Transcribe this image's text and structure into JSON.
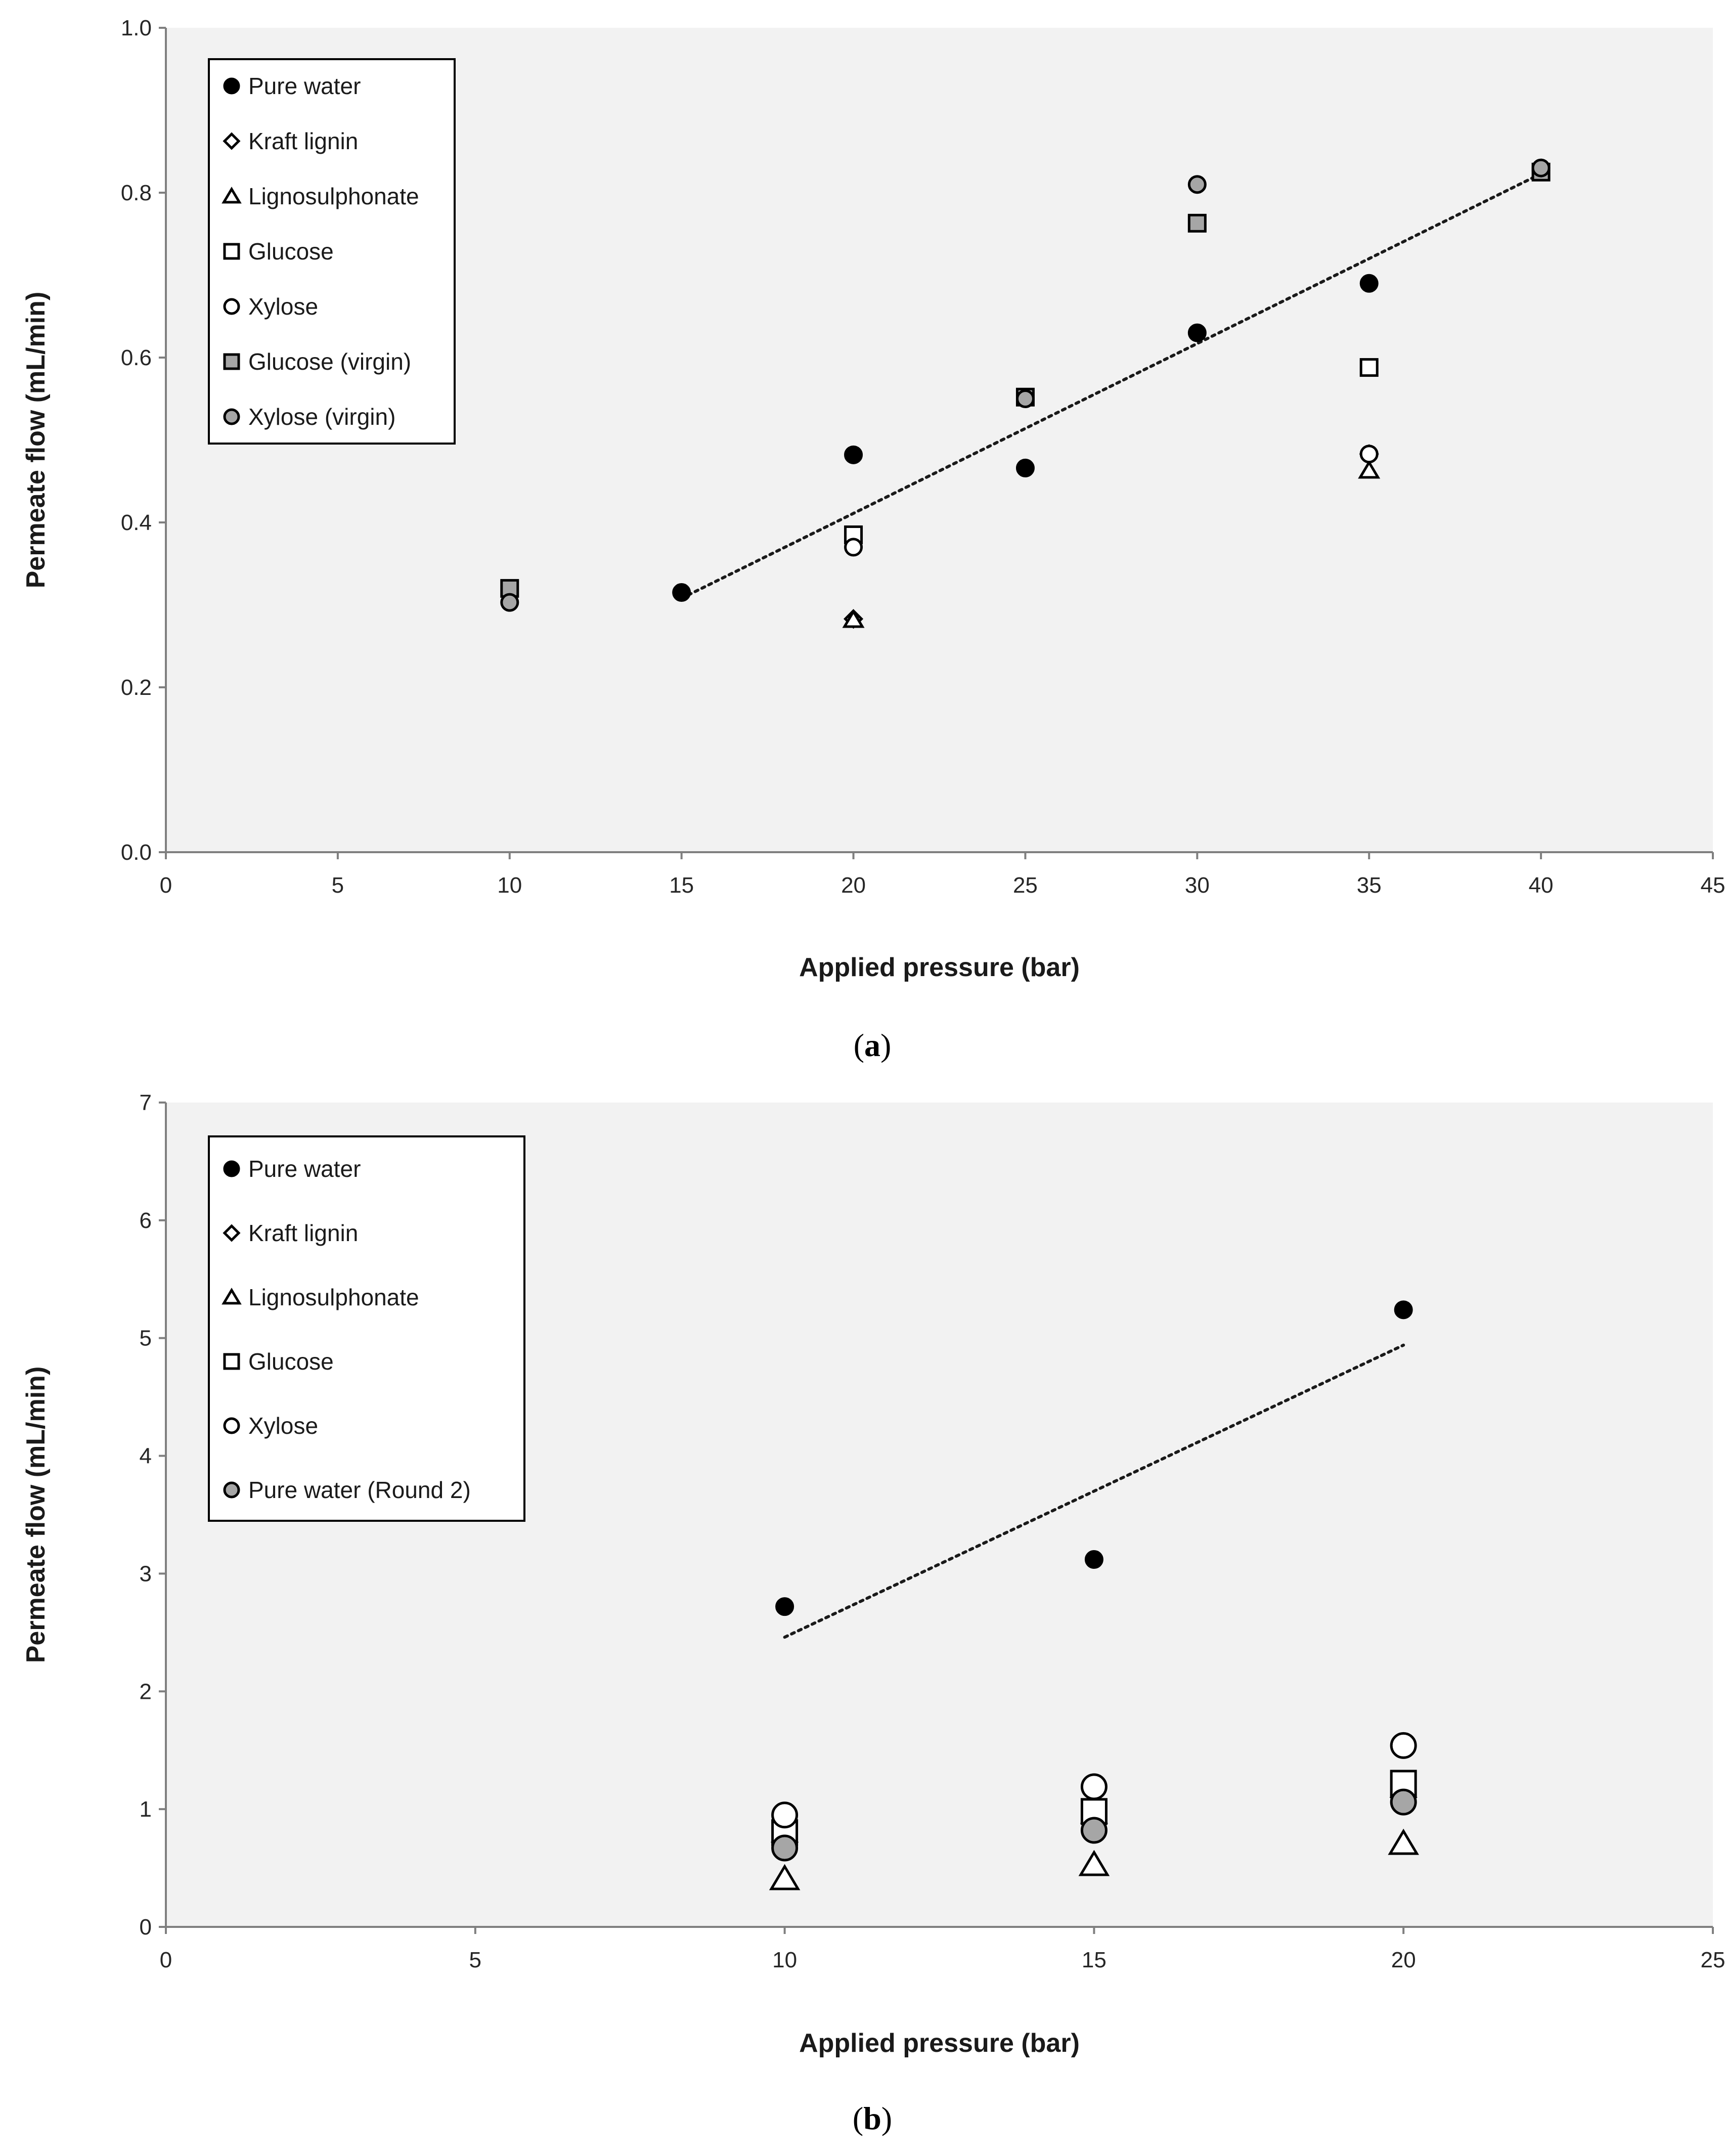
{
  "colors": {
    "plot_bg": "#f2f2f2",
    "black": "#000000",
    "gray_fill": "#a6a6a6",
    "white": "#ffffff"
  },
  "chart_data": [
    {
      "type": "scatter",
      "caption": "a",
      "xlabel": "Applied pressure (bar)",
      "ylabel": "Permeate flow (mL/min)",
      "xlim": [
        0,
        45
      ],
      "ylim": [
        0,
        1.0
      ],
      "xticks": [
        0,
        5,
        10,
        15,
        20,
        25,
        30,
        35,
        40,
        45
      ],
      "yticks": [
        0.0,
        0.2,
        0.4,
        0.6,
        0.8,
        1.0
      ],
      "ytick_labels": [
        "0.0",
        "0.2",
        "0.4",
        "0.6",
        "0.8",
        "1.0"
      ],
      "grid": false,
      "legend_position": "top-left",
      "series": [
        {
          "name": "Pure water",
          "marker": "circle",
          "fill": "black",
          "size": "small",
          "x": [
            15,
            20,
            25,
            30,
            35,
            40
          ],
          "y": [
            0.315,
            0.482,
            0.466,
            0.63,
            0.69,
            0.827
          ]
        },
        {
          "name": "Kraft lignin",
          "marker": "diamond",
          "fill": "white",
          "size": "small",
          "x": [
            20,
            35
          ],
          "y": [
            0.283,
            0.483
          ]
        },
        {
          "name": "Lignosulphonate",
          "marker": "triangle",
          "fill": "white",
          "size": "small",
          "x": [
            20,
            35
          ],
          "y": [
            0.282,
            0.463
          ]
        },
        {
          "name": "Glucose",
          "marker": "square",
          "fill": "white",
          "size": "small",
          "x": [
            20,
            35
          ],
          "y": [
            0.385,
            0.588
          ]
        },
        {
          "name": "Xylose",
          "marker": "circle",
          "fill": "white",
          "size": "small",
          "x": [
            20,
            35
          ],
          "y": [
            0.37,
            0.483
          ]
        },
        {
          "name": "Glucose (virgin)",
          "marker": "square",
          "fill": "gray",
          "size": "small",
          "x": [
            10,
            25,
            30,
            40
          ],
          "y": [
            0.32,
            0.552,
            0.763,
            0.825
          ]
        },
        {
          "name": "Xylose (virgin)",
          "marker": "circle",
          "fill": "gray",
          "size": "small",
          "x": [
            10,
            25,
            30,
            40
          ],
          "y": [
            0.303,
            0.55,
            0.81,
            0.83
          ]
        }
      ],
      "trendline": {
        "series": "Pure water",
        "style": "dotted",
        "x": [
          15,
          40
        ],
        "y": [
          0.308,
          0.823
        ]
      }
    },
    {
      "type": "scatter",
      "caption": "b",
      "xlabel": "Applied pressure (bar)",
      "ylabel": "Permeate flow (mL/min)",
      "xlim": [
        0,
        25
      ],
      "ylim": [
        0,
        7
      ],
      "xticks": [
        0,
        5,
        10,
        15,
        20,
        25
      ],
      "yticks": [
        0,
        1,
        2,
        3,
        4,
        5,
        6,
        7
      ],
      "ytick_labels": [
        "0",
        "1",
        "2",
        "3",
        "4",
        "5",
        "6",
        "7"
      ],
      "grid": false,
      "legend_position": "top-left",
      "series": [
        {
          "name": "Pure water",
          "marker": "circle",
          "fill": "black",
          "size": "small",
          "x": [
            10,
            15,
            20
          ],
          "y": [
            2.72,
            3.12,
            5.24
          ]
        },
        {
          "name": "Kraft lignin",
          "marker": "diamond",
          "fill": "white",
          "size": "large",
          "x": [
            10,
            15,
            20
          ],
          "y": [
            0.72,
            0.88,
            1.1
          ]
        },
        {
          "name": "Lignosulphonate",
          "marker": "triangle",
          "fill": "white",
          "size": "large",
          "x": [
            10,
            15,
            20
          ],
          "y": [
            0.41,
            0.53,
            0.71
          ]
        },
        {
          "name": "Glucose",
          "marker": "square",
          "fill": "white",
          "size": "large",
          "x": [
            10,
            15,
            20
          ],
          "y": [
            0.8,
            0.98,
            1.22
          ]
        },
        {
          "name": "Xylose",
          "marker": "circle",
          "fill": "white",
          "size": "large",
          "x": [
            10,
            15,
            20
          ],
          "y": [
            0.95,
            1.19,
            1.54
          ]
        },
        {
          "name": "Pure water (Round 2)",
          "marker": "circle",
          "fill": "gray",
          "size": "large",
          "x": [
            10,
            15,
            20
          ],
          "y": [
            0.67,
            0.82,
            1.06
          ]
        }
      ],
      "trendline": {
        "series": "Pure water",
        "style": "dotted",
        "x": [
          10,
          20
        ],
        "y": [
          2.46,
          4.94
        ]
      }
    }
  ]
}
